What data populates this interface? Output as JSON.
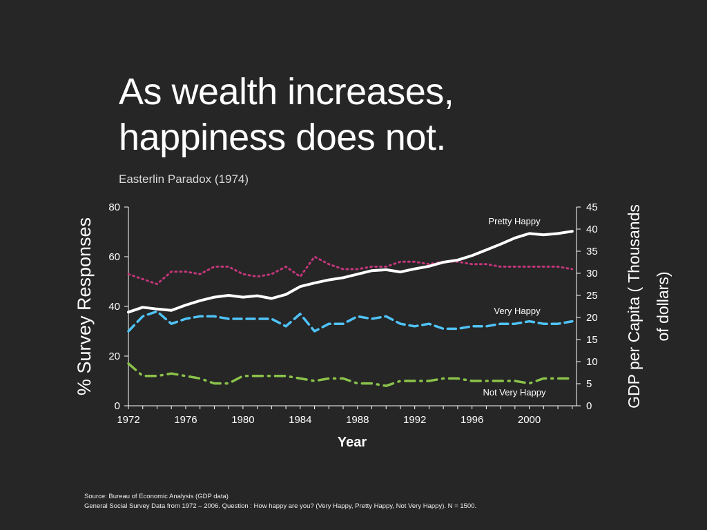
{
  "title_lines": [
    "As wealth increases,",
    "happiness does not."
  ],
  "subtitle": "Easterlin Paradox (1974)",
  "footer": {
    "line1": "Source: Bureau of Economic Analysis (GDP data)",
    "line2": "General Social Survey Data from 1972 – 2006. Question : How happy are you? (Very Happy, Pretty Happy, Not Very Happy). N = 1500."
  },
  "colors": {
    "background": "#262626",
    "gdp": "#ffffff",
    "very_happy": "#4fc3f7",
    "pretty_happy": "#c2367a",
    "not_very_happy": "#8bc34a"
  },
  "chart_data": {
    "type": "line",
    "x": [
      1972,
      1973,
      1974,
      1975,
      1976,
      1977,
      1978,
      1979,
      1980,
      1981,
      1982,
      1983,
      1984,
      1985,
      1986,
      1987,
      1988,
      1989,
      1990,
      1991,
      1992,
      1993,
      1994,
      1995,
      1996,
      1997,
      1998,
      1999,
      2000,
      2001,
      2002,
      2003
    ],
    "xlabel": "Year",
    "xticks": [
      1972,
      1976,
      1980,
      1984,
      1988,
      1992,
      1996,
      2000
    ],
    "xlim": [
      1972,
      2003.3
    ],
    "ylabel_left": "% Survey Responses",
    "ylim_left": [
      0,
      80
    ],
    "yticks_left": [
      0,
      20,
      40,
      60,
      80
    ],
    "ylabel_right": "GDP per Capita ( Thousands of dollars)",
    "ylabel_right_lines": [
      "GDP per Capita ( Thousands",
      "of dollars)"
    ],
    "ylim_right": [
      0,
      45
    ],
    "yticks_right": [
      0,
      5,
      10,
      15,
      20,
      25,
      30,
      35,
      40,
      45
    ],
    "series": [
      {
        "name": "Pretty Happy",
        "axis": "left",
        "style": "dotted",
        "values": [
          53,
          51,
          49,
          54,
          54,
          53,
          56,
          56,
          53,
          52,
          53,
          56,
          52,
          60,
          57,
          55,
          55,
          56,
          56,
          58,
          58,
          57,
          58,
          58,
          57,
          57,
          56,
          56,
          56,
          56,
          56,
          55
        ]
      },
      {
        "name": "Very Happy",
        "axis": "left",
        "style": "dashed",
        "values": [
          30,
          36,
          38,
          33,
          35,
          36,
          36,
          35,
          35,
          35,
          35,
          32,
          37,
          30,
          33,
          33,
          36,
          35,
          36,
          33,
          32,
          33,
          31,
          31,
          32,
          32,
          33,
          33,
          34,
          33,
          33,
          34
        ]
      },
      {
        "name": "Not Very Happy",
        "axis": "left",
        "style": "dashdot",
        "values": [
          17,
          12,
          12,
          13,
          12,
          11,
          9,
          9,
          12,
          12,
          12,
          12,
          11,
          10,
          11,
          11,
          9,
          9,
          8,
          10,
          10,
          10,
          11,
          11,
          10,
          10,
          10,
          10,
          9,
          11,
          11,
          11
        ]
      },
      {
        "name": "",
        "axis": "right",
        "style": "solid",
        "values": [
          21.2,
          22.3,
          21.9,
          21.6,
          22.8,
          23.8,
          24.6,
          25.0,
          24.6,
          24.9,
          24.3,
          25.2,
          27.0,
          27.8,
          28.5,
          29.0,
          29.8,
          30.6,
          30.8,
          30.3,
          31.0,
          31.6,
          32.5,
          33.0,
          34.0,
          35.3,
          36.6,
          38.0,
          39.0,
          38.7,
          39.0,
          39.5
        ]
      }
    ],
    "labels": [
      {
        "text": "Pretty Happy"
      },
      {
        "text": "Very Happy"
      },
      {
        "text": "Not Very Happy"
      }
    ],
    "grid": false
  }
}
